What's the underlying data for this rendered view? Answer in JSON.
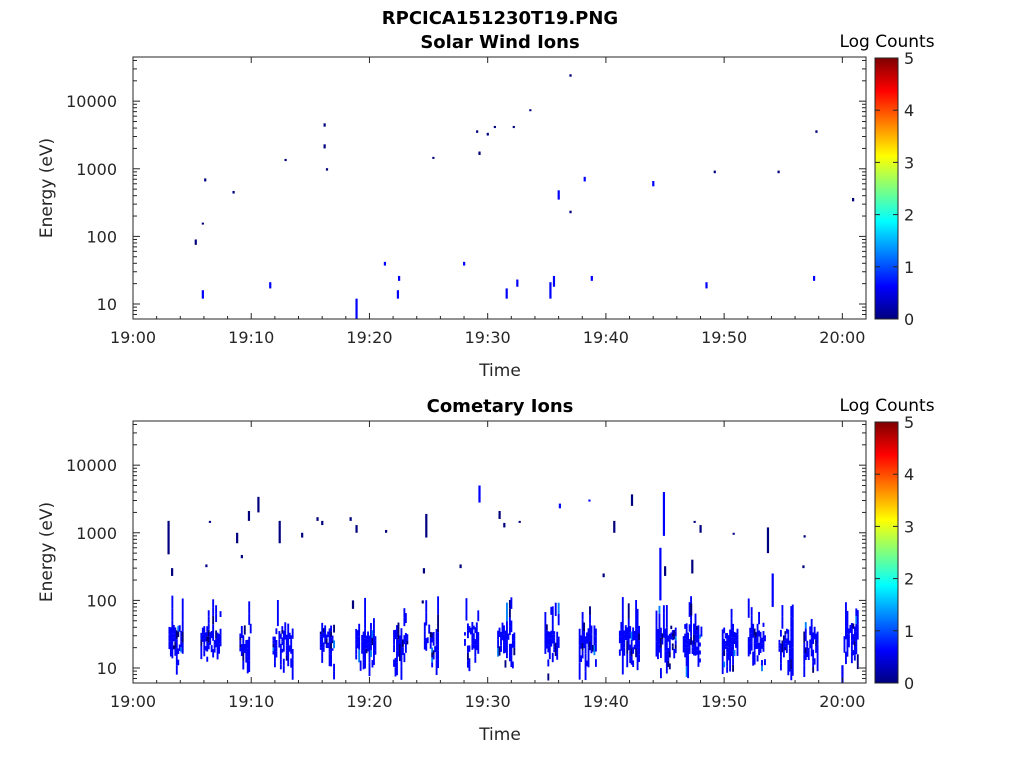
{
  "figure": {
    "title": "RPCICA151230T19.PNG"
  },
  "colorbar": {
    "label": "Log Counts",
    "ticks": [
      "0",
      "1",
      "2",
      "3",
      "4",
      "5"
    ],
    "range": [
      0,
      5
    ],
    "colors": [
      "#00007f",
      "#0000ff",
      "#007fff",
      "#00ffff",
      "#7fff7f",
      "#ffff00",
      "#ff7f00",
      "#ff0000",
      "#7f0000"
    ]
  },
  "chart_data": [
    {
      "type": "heatmap",
      "title": "Solar Wind Ions",
      "xlabel": "Time",
      "ylabel": "Energy (eV)",
      "y_scale": "log",
      "x_ticks": [
        "19:00",
        "19:10",
        "19:20",
        "19:30",
        "19:40",
        "19:50",
        "20:00"
      ],
      "y_ticks": [
        "10",
        "100",
        "1000",
        "10000"
      ],
      "xlim": [
        "19:00",
        "20:02"
      ],
      "ylim": [
        6,
        45000
      ],
      "grid": false,
      "marks": [
        {
          "t": "19:05.3",
          "e": [
            75,
            90
          ],
          "c": 0.3
        },
        {
          "t": "19:05.9",
          "e": [
            12,
            16
          ],
          "c": 0.4
        },
        {
          "t": "19:05.9",
          "e": [
            150,
            160
          ],
          "c": 0.3
        },
        {
          "t": "19:06.1",
          "e": [
            650,
            720
          ],
          "c": 0.3
        },
        {
          "t": "19:08.5",
          "e": [
            430,
            470
          ],
          "c": 0.3
        },
        {
          "t": "19:11.6",
          "e": [
            17,
            21
          ],
          "c": 0.4
        },
        {
          "t": "19:12.9",
          "e": [
            1300,
            1400
          ],
          "c": 0.3
        },
        {
          "t": "19:16.2",
          "e": [
            4200,
            4700
          ],
          "c": 0.3
        },
        {
          "t": "19:16.2",
          "e": [
            2000,
            2300
          ],
          "c": 0.3
        },
        {
          "t": "19:16.4",
          "e": [
            940,
            1020
          ],
          "c": 0.3
        },
        {
          "t": "19:18.9",
          "e": [
            6,
            12
          ],
          "c": 0.5
        },
        {
          "t": "19:21.3",
          "e": [
            37,
            42
          ],
          "c": 0.4
        },
        {
          "t": "19:22.4",
          "e": [
            12,
            16
          ],
          "c": 0.4
        },
        {
          "t": "19:22.5",
          "e": [
            22,
            26
          ],
          "c": 0.4
        },
        {
          "t": "19:25.4",
          "e": [
            1400,
            1500
          ],
          "c": 0.3
        },
        {
          "t": "19:28.0",
          "e": [
            37,
            42
          ],
          "c": 0.4
        },
        {
          "t": "19:29.1",
          "e": [
            3400,
            3700
          ],
          "c": 0.3
        },
        {
          "t": "19:29.3",
          "e": [
            1600,
            1800
          ],
          "c": 0.3
        },
        {
          "t": "19:30.0",
          "e": [
            3100,
            3400
          ],
          "c": 0.3
        },
        {
          "t": "19:30.6",
          "e": [
            4000,
            4300
          ],
          "c": 0.3
        },
        {
          "t": "19:31.6",
          "e": [
            12,
            17
          ],
          "c": 0.4
        },
        {
          "t": "19:32.2",
          "e": [
            4000,
            4300
          ],
          "c": 0.3
        },
        {
          "t": "19:32.5",
          "e": [
            18,
            23
          ],
          "c": 0.4
        },
        {
          "t": "19:33.6",
          "e": [
            7100,
            7600
          ],
          "c": 0.3
        },
        {
          "t": "19:35.3",
          "e": [
            12,
            21
          ],
          "c": 0.5
        },
        {
          "t": "19:35.6",
          "e": [
            18,
            26
          ],
          "c": 0.5
        },
        {
          "t": "19:36.0",
          "e": [
            350,
            480
          ],
          "c": 0.8
        },
        {
          "t": "19:37.0",
          "e": [
            23000,
            25000
          ],
          "c": 0.3
        },
        {
          "t": "19:37.0",
          "e": [
            220,
            240
          ],
          "c": 0.3
        },
        {
          "t": "19:38.2",
          "e": [
            650,
            760
          ],
          "c": 0.4
        },
        {
          "t": "19:38.8",
          "e": [
            22,
            26
          ],
          "c": 0.4
        },
        {
          "t": "19:44.0",
          "e": [
            550,
            660
          ],
          "c": 0.4
        },
        {
          "t": "19:48.5",
          "e": [
            17,
            21
          ],
          "c": 0.4
        },
        {
          "t": "19:49.2",
          "e": [
            860,
            940
          ],
          "c": 0.3
        },
        {
          "t": "19:54.6",
          "e": [
            860,
            940
          ],
          "c": 0.3
        },
        {
          "t": "19:57.6",
          "e": [
            22,
            26
          ],
          "c": 0.4
        },
        {
          "t": "19:57.8",
          "e": [
            3400,
            3700
          ],
          "c": 0.3
        },
        {
          "t": "20:00.9",
          "e": [
            330,
            370
          ],
          "c": 0.3
        }
      ]
    },
    {
      "type": "heatmap",
      "title": "Cometary Ions",
      "xlabel": "Time",
      "ylabel": "Energy (eV)",
      "y_scale": "log",
      "x_ticks": [
        "19:00",
        "19:10",
        "19:20",
        "19:30",
        "19:40",
        "19:50",
        "20:00"
      ],
      "y_ticks": [
        "10",
        "100",
        "1000",
        "10000"
      ],
      "xlim": [
        "19:00",
        "20:02"
      ],
      "ylim": [
        6,
        45000
      ],
      "grid": false,
      "bursts": [
        {
          "t": "19:03.0",
          "dt": 1.2
        },
        {
          "t": "19:05.7",
          "dt": 1.8
        },
        {
          "t": "19:09.0",
          "dt": 1.0
        },
        {
          "t": "19:11.8",
          "dt": 1.8
        },
        {
          "t": "19:15.8",
          "dt": 1.2
        },
        {
          "t": "19:18.8",
          "dt": 1.8
        },
        {
          "t": "19:22.0",
          "dt": 1.3
        },
        {
          "t": "19:24.6",
          "dt": 1.2
        },
        {
          "t": "19:28.0",
          "dt": 1.2
        },
        {
          "t": "19:30.8",
          "dt": 1.5
        },
        {
          "t": "19:34.8",
          "dt": 1.2
        },
        {
          "t": "19:37.7",
          "dt": 1.5
        },
        {
          "t": "19:41.1",
          "dt": 1.8
        },
        {
          "t": "19:44.2",
          "dt": 1.8
        },
        {
          "t": "19:46.5",
          "dt": 1.6
        },
        {
          "t": "19:49.8",
          "dt": 1.4
        },
        {
          "t": "19:52.0",
          "dt": 1.5
        },
        {
          "t": "19:54.6",
          "dt": 1.2
        },
        {
          "t": "19:56.7",
          "dt": 1.2
        },
        {
          "t": "20:00.1",
          "dt": 1.2
        }
      ],
      "marks": [
        {
          "t": "19:03.0",
          "e": [
            480,
            1500
          ],
          "c": 0.3
        },
        {
          "t": "19:03.3",
          "e": [
            230,
            300
          ],
          "c": 0.3
        },
        {
          "t": "19:06.2",
          "e": [
            310,
            340
          ],
          "c": 0.3
        },
        {
          "t": "19:06.5",
          "e": [
            1400,
            1500
          ],
          "c": 0.3
        },
        {
          "t": "19:08.8",
          "e": [
            700,
            1000
          ],
          "c": 0.3
        },
        {
          "t": "19:09.2",
          "e": [
            420,
            470
          ],
          "c": 0.3
        },
        {
          "t": "19:09.8",
          "e": [
            1500,
            2100
          ],
          "c": 0.3
        },
        {
          "t": "19:10.6",
          "e": [
            2000,
            3400
          ],
          "c": 0.3
        },
        {
          "t": "19:12.4",
          "e": [
            700,
            1500
          ],
          "c": 0.3
        },
        {
          "t": "19:14.3",
          "e": [
            850,
            1000
          ],
          "c": 0.3
        },
        {
          "t": "19:15.6",
          "e": [
            1500,
            1700
          ],
          "c": 0.3
        },
        {
          "t": "19:16.0",
          "e": [
            1300,
            1500
          ],
          "c": 0.3
        },
        {
          "t": "19:18.4",
          "e": [
            1500,
            1700
          ],
          "c": 0.3
        },
        {
          "t": "19:18.9",
          "e": [
            1000,
            1300
          ],
          "c": 0.3
        },
        {
          "t": "19:18.6",
          "e": [
            75,
            100
          ],
          "c": 0.3
        },
        {
          "t": "19:21.4",
          "e": [
            1000,
            1100
          ],
          "c": 0.3
        },
        {
          "t": "19:24.8",
          "e": [
            850,
            1900
          ],
          "c": 0.3
        },
        {
          "t": "19:24.6",
          "e": [
            250,
            300
          ],
          "c": 0.3
        },
        {
          "t": "19:24.5",
          "e": [
            90,
            100
          ],
          "c": 0.3
        },
        {
          "t": "19:27.7",
          "e": [
            300,
            340
          ],
          "c": 0.3
        },
        {
          "t": "19:29.3",
          "e": [
            2800,
            5000
          ],
          "c": 0.5
        },
        {
          "t": "19:31.0",
          "e": [
            1600,
            2100
          ],
          "c": 0.3
        },
        {
          "t": "19:31.4",
          "e": [
            1200,
            1400
          ],
          "c": 0.3
        },
        {
          "t": "19:32.7",
          "e": [
            1400,
            1500
          ],
          "c": 0.3
        },
        {
          "t": "19:36.1",
          "e": [
            2300,
            2700
          ],
          "c": 0.4
        },
        {
          "t": "19:38.6",
          "e": [
            2900,
            3100
          ],
          "c": 0.4
        },
        {
          "t": "19:39.8",
          "e": [
            220,
            250
          ],
          "c": 0.3
        },
        {
          "t": "19:40.7",
          "e": [
            1000,
            1500
          ],
          "c": 0.3
        },
        {
          "t": "19:42.2",
          "e": [
            2500,
            3700
          ],
          "c": 0.3
        },
        {
          "t": "19:44.9",
          "e": [
            900,
            4000
          ],
          "c": 0.4
        },
        {
          "t": "19:44.6",
          "e": [
            100,
            600
          ],
          "c": 0.5
        },
        {
          "t": "19:45.0",
          "e": [
            230,
            320
          ],
          "c": 0.3
        },
        {
          "t": "19:47.3",
          "e": [
            250,
            400
          ],
          "c": 0.3
        },
        {
          "t": "19:47.5",
          "e": [
            1400,
            1500
          ],
          "c": 0.3
        },
        {
          "t": "19:48.0",
          "e": [
            1000,
            1300
          ],
          "c": 0.3
        },
        {
          "t": "19:47.2",
          "e": [
            60,
            90
          ],
          "c": 0.3
        },
        {
          "t": "19:50.8",
          "e": [
            950,
            1000
          ],
          "c": 0.3
        },
        {
          "t": "19:53.7",
          "e": [
            500,
            1200
          ],
          "c": 0.3
        },
        {
          "t": "19:54.1",
          "e": [
            80,
            250
          ],
          "c": 0.4
        },
        {
          "t": "19:56.7",
          "e": [
            300,
            330
          ],
          "c": 0.3
        },
        {
          "t": "19:56.8",
          "e": [
            850,
            920
          ],
          "c": 0.3
        },
        {
          "t": "20:00.0",
          "e": [
            6,
            11
          ],
          "c": 0.4
        }
      ]
    }
  ]
}
